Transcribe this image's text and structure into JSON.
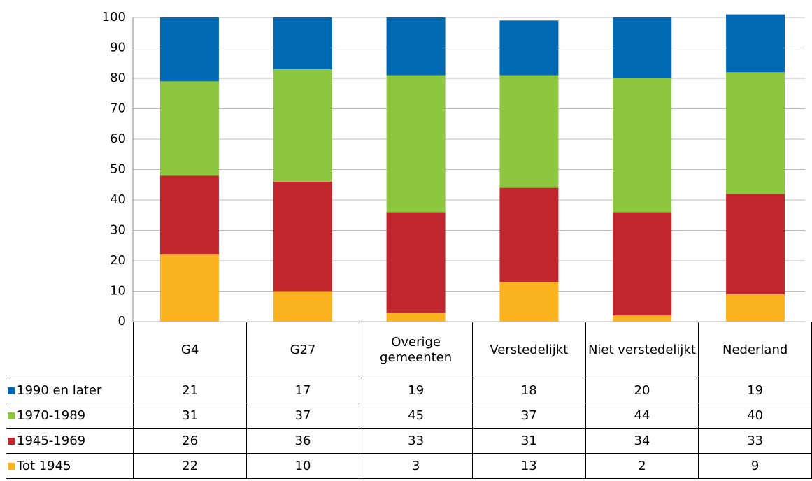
{
  "chart_data": {
    "type": "stacked_bar",
    "categories": [
      "G4",
      "G27",
      "Overige gemeenten",
      "Verstedelijkt",
      "Niet verstedelijkt",
      "Nederland"
    ],
    "series": [
      {
        "name": "1990 en later",
        "color": "#0069b4",
        "values": [
          21,
          17,
          19,
          18,
          20,
          19
        ]
      },
      {
        "name": "1970-1989",
        "color": "#8dc63f",
        "values": [
          31,
          37,
          45,
          37,
          44,
          40
        ]
      },
      {
        "name": "1945-1969",
        "color": "#c1272d",
        "values": [
          26,
          36,
          33,
          31,
          34,
          33
        ]
      },
      {
        "name": "Tot 1945",
        "color": "#fbb41f",
        "values": [
          22,
          10,
          3,
          13,
          2,
          9
        ]
      }
    ],
    "ylim": [
      0,
      100
    ],
    "yticks": [
      0,
      10,
      20,
      30,
      40,
      50,
      60,
      70,
      80,
      90,
      100
    ],
    "grid": true
  }
}
